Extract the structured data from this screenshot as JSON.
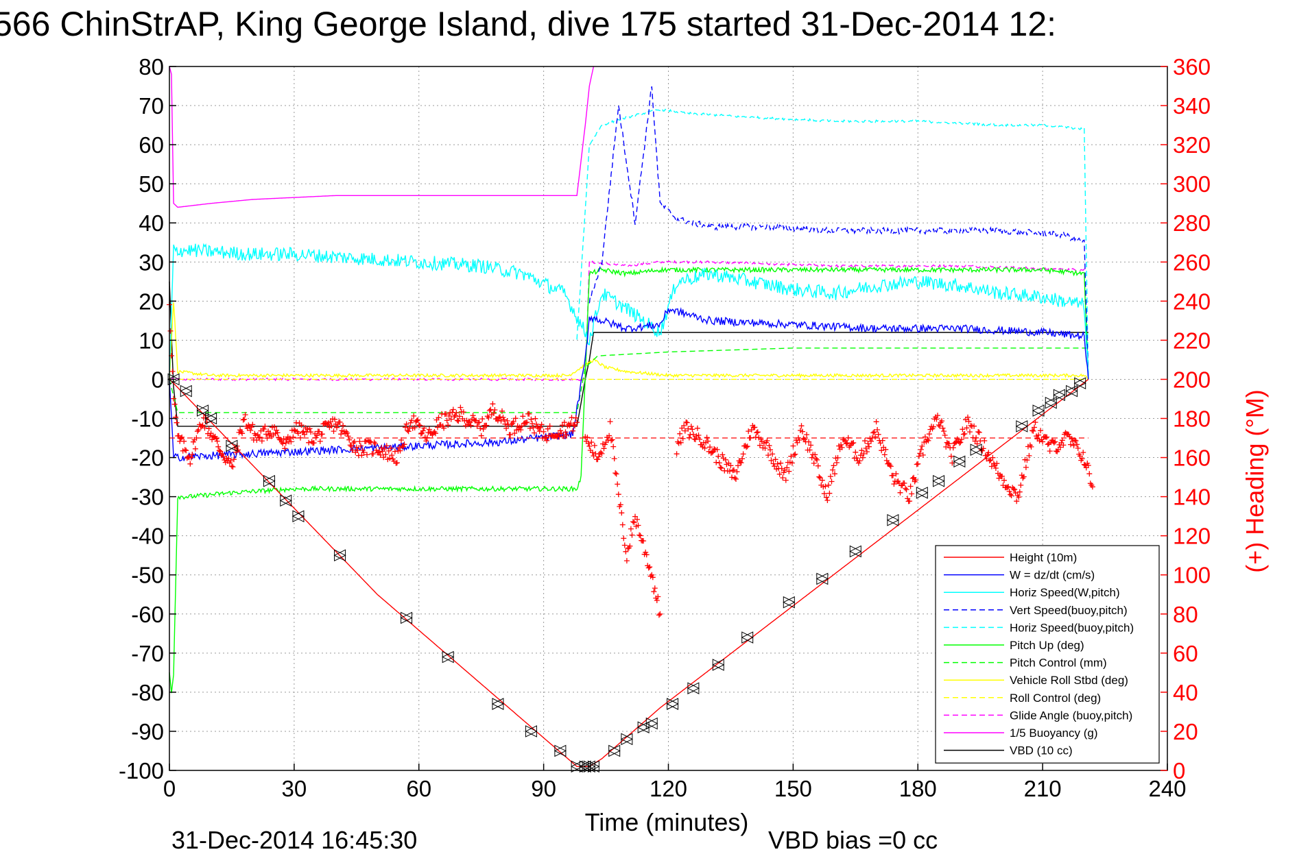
{
  "chart_data": {
    "type": "line",
    "title": "566 ChinStrAP, King George Island, dive 175 started 31-Dec-2014 12:",
    "xlabel": "Time (minutes)",
    "ylabel_right": "(+) Heading (°M)",
    "xlim": [
      0,
      240
    ],
    "ylim_left": [
      -100,
      80
    ],
    "ylim_right": [
      0,
      360
    ],
    "x_ticks": [
      "0",
      "30",
      "60",
      "90",
      "120",
      "150",
      "180",
      "210",
      "240"
    ],
    "y_left_ticks": [
      "80",
      "70",
      "60",
      "50",
      "40",
      "30",
      "20",
      "10",
      "0",
      "-10",
      "-20",
      "-30",
      "-40",
      "-50",
      "-60",
      "-70",
      "-80",
      "-90",
      "-100"
    ],
    "y_right_ticks": [
      "360",
      "340",
      "320",
      "300",
      "280",
      "260",
      "240",
      "220",
      "200",
      "180",
      "160",
      "140",
      "120",
      "100",
      "80",
      "60",
      "40",
      "20",
      "0"
    ],
    "grid": true,
    "legend_position": "bottom-right",
    "footer_left": "31-Dec-2014 16:45:30",
    "footer_right": "VBD bias =0 cc",
    "colors": {
      "red": "#ff0000",
      "blue": "#0000ff",
      "cyan": "#00ffff",
      "green": "#00ff00",
      "yellow": "#ffff00",
      "magenta": "#ff00ff",
      "black": "#000000"
    },
    "series": [
      {
        "name": "Height (10m)",
        "color": "#ff0000",
        "dash": false,
        "noise": 0,
        "x": [
          0,
          1,
          50,
          98,
          100,
          101,
          104,
          118,
          221
        ],
        "y": [
          0,
          -1,
          -55,
          -99,
          -99,
          -99,
          -97,
          -84,
          0
        ]
      },
      {
        "name": "W = dz/dt (cm/s)",
        "color": "#0000ff",
        "dash": false,
        "noise": 1.0,
        "x": [
          0,
          1,
          20,
          40,
          60,
          80,
          97,
          100,
          101,
          104,
          110,
          118,
          120,
          130,
          150,
          170,
          190,
          210,
          220,
          221
        ],
        "y": [
          0,
          -20,
          -19,
          -18,
          -17,
          -16,
          -14,
          5,
          16,
          15,
          13,
          14,
          18,
          15,
          14,
          13,
          13,
          12,
          11,
          0
        ]
      },
      {
        "name": "Horiz Speed(W,pitch)",
        "color": "#00ffff",
        "dash": false,
        "noise": 1.8,
        "x": [
          0,
          1,
          5,
          20,
          30,
          45,
          60,
          75,
          85,
          95,
          99,
          101,
          104,
          110,
          118,
          122,
          130,
          140,
          150,
          160,
          170,
          180,
          190,
          200,
          210,
          220,
          221
        ],
        "y": [
          0,
          33,
          33,
          32,
          32,
          31,
          30,
          29,
          27,
          22,
          14,
          10,
          22,
          18,
          12,
          25,
          27,
          25,
          23,
          22,
          24,
          25,
          24,
          22,
          21,
          19,
          0
        ]
      },
      {
        "name": "Vert Speed(buoy,pitch)",
        "color": "#0000ff",
        "dash": true,
        "noise": 0.8,
        "x": [
          101,
          104,
          108,
          112,
          116,
          118,
          122,
          130,
          145,
          160,
          180,
          200,
          215,
          220,
          221
        ],
        "y": [
          20,
          30,
          70,
          40,
          75,
          45,
          41,
          39,
          39,
          38,
          38,
          38,
          37,
          35,
          0
        ]
      },
      {
        "name": "Horiz Speed(buoy,pitch)",
        "color": "#00ffff",
        "dash": true,
        "noise": 0.3,
        "x": [
          98,
          101,
          104,
          110,
          118,
          125,
          140,
          160,
          180,
          200,
          210,
          220,
          221
        ],
        "y": [
          10,
          60,
          65,
          67,
          69,
          68,
          67,
          66,
          66,
          65,
          65,
          64,
          0
        ]
      },
      {
        "name": "Pitch Up (deg)",
        "color": "#00ff00",
        "dash": false,
        "noise": 0.6,
        "x": [
          0,
          0.5,
          1,
          2,
          5,
          15,
          30,
          50,
          70,
          90,
          98,
          99,
          101,
          104,
          110,
          118,
          130,
          150,
          170,
          190,
          210,
          220,
          221
        ],
        "y": [
          -75,
          -80,
          -75,
          -30,
          -30,
          -29,
          -28,
          -28,
          -28,
          -28,
          -28,
          -25,
          27,
          28,
          27,
          28,
          28,
          28,
          28,
          28,
          28,
          27,
          0
        ]
      },
      {
        "name": "Pitch Control (mm)",
        "color": "#00ff00",
        "dash": true,
        "noise": 0,
        "x": [
          0,
          2,
          98,
          100,
          103,
          120,
          150,
          221
        ],
        "y": [
          0,
          -8.5,
          -8.5,
          3,
          6,
          7,
          8,
          8
        ]
      },
      {
        "name": "Vehicle Roll Stbd (deg)",
        "color": "#ffff00",
        "dash": false,
        "noise": 0.4,
        "x": [
          0,
          1,
          2,
          10,
          20,
          40,
          60,
          80,
          96,
          99,
          102,
          105,
          110,
          120,
          140,
          160,
          180,
          200,
          220,
          221
        ],
        "y": [
          0,
          20,
          2,
          1,
          1,
          1,
          1,
          1,
          1,
          3,
          5,
          3,
          2,
          1,
          1,
          1,
          1,
          1,
          1,
          0
        ]
      },
      {
        "name": "Roll Control (deg)",
        "color": "#ffff00",
        "dash": true,
        "noise": 0,
        "x": [
          0,
          2,
          98,
          100,
          221
        ],
        "y": [
          0,
          0,
          0,
          0,
          0
        ]
      },
      {
        "name": "Glide Angle (buoy,pitch)",
        "color": "#ff00ff",
        "dash": true,
        "noise": 0.3,
        "x": [
          0,
          1,
          98,
          100,
          101,
          110,
          118,
          130,
          160,
          190,
          220,
          221
        ],
        "y": [
          0,
          0,
          0,
          0,
          30,
          29,
          30,
          30,
          29,
          29,
          28,
          0
        ]
      },
      {
        "name": "1/5 Buoyancy (g)",
        "color": "#ff00ff",
        "dash": false,
        "noise": 0,
        "x": [
          0,
          0.5,
          1,
          2,
          10,
          20,
          30,
          40,
          60,
          80,
          98,
          100,
          101,
          102
        ],
        "y": [
          80,
          78,
          45,
          44,
          45,
          46,
          46.5,
          47,
          47,
          47,
          47,
          65,
          75,
          80
        ]
      },
      {
        "name": "VBD (10 cc)",
        "color": "#000000",
        "dash": false,
        "noise": 0,
        "x": [
          0,
          1,
          2,
          98,
          100,
          101,
          102,
          221
        ],
        "y": [
          25,
          -2,
          -12,
          -12,
          0,
          5,
          12,
          12
        ]
      }
    ],
    "heading_series": {
      "name": "(+) Heading",
      "color": "#ff0000",
      "marker": "+",
      "mean": 170,
      "segments": [
        {
          "x": [
            0,
            1,
            2,
            5,
            8,
            12,
            15,
            18,
            21,
            25,
            28,
            30,
            35,
            40,
            45,
            50,
            55,
            58,
            62,
            65,
            70,
            75,
            78,
            82,
            86,
            90,
            95,
            98
          ],
          "y": [
            240,
            190,
            170,
            160,
            180,
            165,
            155,
            180,
            170,
            175,
            165,
            175,
            170,
            178,
            165,
            165,
            160,
            180,
            170,
            178,
            182,
            175,
            185,
            175,
            180,
            172,
            175,
            178
          ]
        },
        {
          "x": [
            100,
            103,
            106,
            108,
            110,
            112,
            114,
            116,
            118
          ],
          "y": [
            170,
            160,
            175,
            140,
            110,
            130,
            115,
            100,
            80
          ]
        },
        {
          "x": [
            122,
            124,
            128,
            132,
            136,
            140,
            144,
            148,
            152,
            155,
            158,
            162,
            166,
            170,
            174,
            178,
            182,
            185,
            188,
            192,
            196,
            200,
            204,
            208,
            212,
            216,
            220,
            222
          ],
          "y": [
            165,
            175,
            170,
            160,
            150,
            175,
            165,
            150,
            175,
            160,
            140,
            170,
            160,
            175,
            150,
            140,
            170,
            180,
            160,
            178,
            165,
            150,
            140,
            175,
            165,
            170,
            160,
            145
          ]
        }
      ]
    },
    "triangle_markers": {
      "x": [
        1,
        4,
        8,
        10,
        15,
        24,
        28,
        31,
        41,
        57,
        67,
        79,
        87,
        94,
        98,
        100,
        101,
        102,
        107,
        110,
        114,
        116,
        121,
        126,
        132,
        139,
        149,
        157,
        165,
        174,
        181,
        185,
        190,
        194,
        205,
        209,
        212,
        214,
        217,
        219
      ],
      "y": [
        0,
        -3,
        -8,
        -10,
        -17,
        -26,
        -31,
        -35,
        -45,
        -61,
        -71,
        -83,
        -90,
        -95,
        -99,
        -99,
        -99,
        -99,
        -95,
        -92,
        -89,
        -88,
        -83,
        -79,
        -73,
        -66,
        -57,
        -51,
        -44,
        -36,
        -29,
        -26,
        -21,
        -18,
        -12,
        -8,
        -6,
        -4,
        -3,
        -1
      ]
    }
  }
}
